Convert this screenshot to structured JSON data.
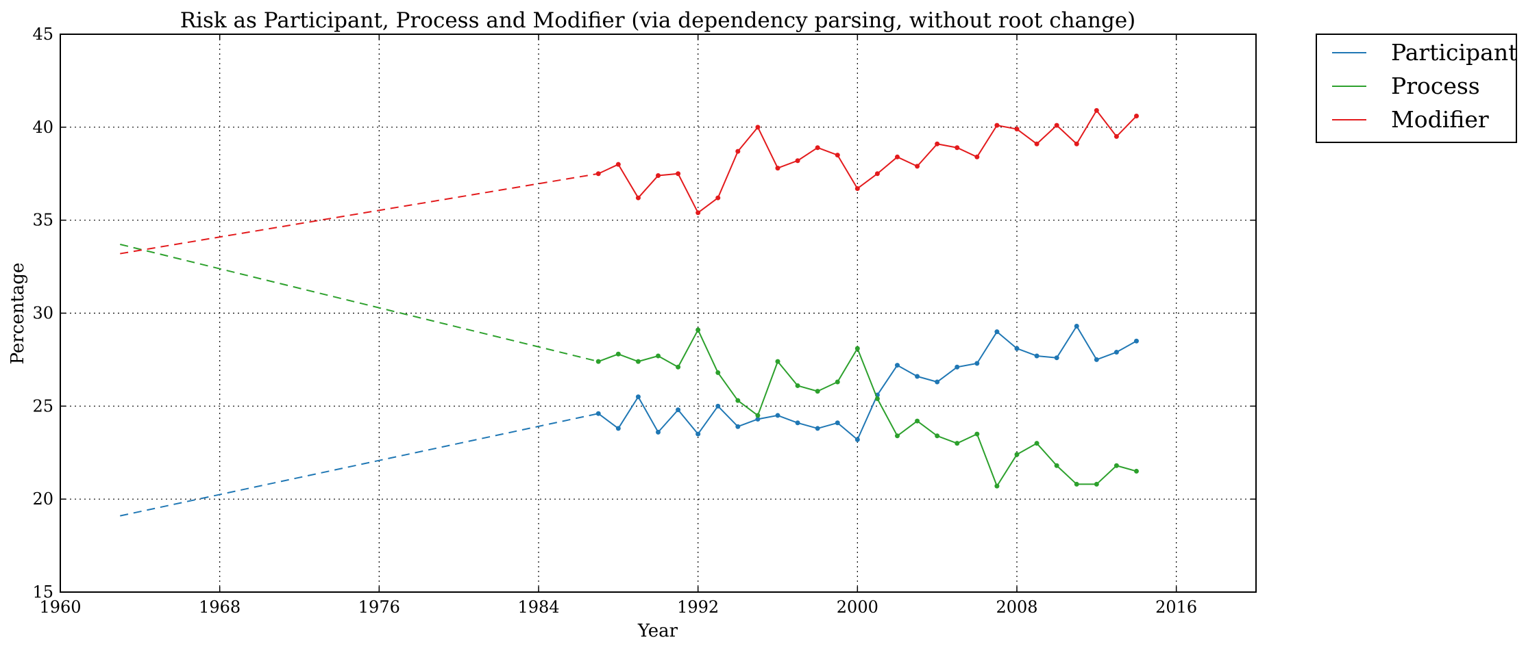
{
  "chart_data": {
    "type": "line",
    "title": "Risk as Participant, Process and Modifier (via dependency parsing, without root change)",
    "xlabel": "Year",
    "ylabel": "Percentage",
    "xlim": [
      1960,
      2020
    ],
    "ylim": [
      15,
      45
    ],
    "xticks": [
      1960,
      1968,
      1976,
      1984,
      1992,
      2000,
      2008,
      2016
    ],
    "yticks": [
      15,
      20,
      25,
      30,
      35,
      40,
      45
    ],
    "grid": true,
    "legend_position": "outside-top-right",
    "series": [
      {
        "name": "Participant",
        "color": "#1f77b4",
        "dashed": {
          "x": [
            1963,
            1987
          ],
          "y": [
            19.1,
            24.6
          ]
        },
        "x": [
          1987,
          1988,
          1989,
          1990,
          1991,
          1992,
          1993,
          1994,
          1995,
          1996,
          1997,
          1998,
          1999,
          2000,
          2001,
          2002,
          2003,
          2004,
          2005,
          2006,
          2007,
          2008,
          2009,
          2010,
          2011,
          2012,
          2013,
          2014
        ],
        "y": [
          24.6,
          23.8,
          25.5,
          23.6,
          24.8,
          23.5,
          25.0,
          23.9,
          24.3,
          24.5,
          24.1,
          23.8,
          24.1,
          23.2,
          25.6,
          27.2,
          26.6,
          26.3,
          27.1,
          27.3,
          29.0,
          28.1,
          27.7,
          27.6,
          29.3,
          27.5,
          27.9,
          28.5
        ]
      },
      {
        "name": "Process",
        "color": "#2ca02c",
        "dashed": {
          "x": [
            1963,
            1987
          ],
          "y": [
            33.7,
            27.4
          ]
        },
        "x": [
          1987,
          1988,
          1989,
          1990,
          1991,
          1992,
          1993,
          1994,
          1995,
          1996,
          1997,
          1998,
          1999,
          2000,
          2001,
          2002,
          2003,
          2004,
          2005,
          2006,
          2007,
          2008,
          2009,
          2010,
          2011,
          2012,
          2013,
          2014
        ],
        "y": [
          27.4,
          27.8,
          27.4,
          27.7,
          27.1,
          29.1,
          26.8,
          25.3,
          24.5,
          27.4,
          26.1,
          25.8,
          26.3,
          28.1,
          25.4,
          23.4,
          24.2,
          23.4,
          23.0,
          23.5,
          20.7,
          22.4,
          23.0,
          21.8,
          20.8,
          20.8,
          21.8,
          21.5
        ]
      },
      {
        "name": "Modifier",
        "color": "#e31a1c",
        "dashed": {
          "x": [
            1963,
            1987
          ],
          "y": [
            33.2,
            37.5
          ]
        },
        "x": [
          1987,
          1988,
          1989,
          1990,
          1991,
          1992,
          1993,
          1994,
          1995,
          1996,
          1997,
          1998,
          1999,
          2000,
          2001,
          2002,
          2003,
          2004,
          2005,
          2006,
          2007,
          2008,
          2009,
          2010,
          2011,
          2012,
          2013,
          2014
        ],
        "y": [
          37.5,
          38.0,
          36.2,
          37.4,
          37.5,
          35.4,
          36.2,
          38.7,
          40.0,
          37.8,
          38.2,
          38.9,
          38.5,
          36.7,
          37.5,
          38.4,
          37.9,
          39.1,
          38.9,
          38.4,
          40.1,
          39.9,
          39.1,
          40.1,
          39.1,
          40.9,
          39.5,
          40.6
        ]
      }
    ]
  }
}
